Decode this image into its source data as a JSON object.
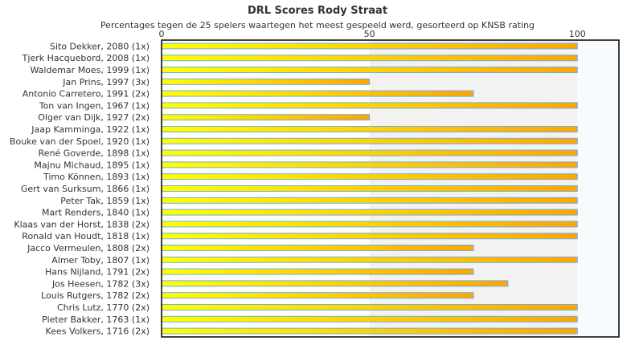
{
  "chart_data": {
    "type": "bar",
    "orientation": "horizontal",
    "title": "DRL Scores Rody Straat",
    "subtitle": "Percentages tegen de 25 spelers waartegen het meest gespeeld werd, gesorteerd op KNSB rating",
    "xlim": [
      0,
      110
    ],
    "xticks": [
      "0",
      "50",
      "100"
    ],
    "categories": [
      "Sito Dekker, 2080 (1x)",
      "Tjerk Hacquebord, 2008 (1x)",
      "Waldemar Moes, 1999 (1x)",
      "Jan Prins, 1997 (3x)",
      "Antonio Carretero, 1991 (2x)",
      "Ton van Ingen, 1967 (1x)",
      "Olger van Dijk, 1927 (2x)",
      "Jaap Kamminga, 1922 (1x)",
      "Bouke van der Spoel, 1920 (1x)",
      "René Goverde, 1898 (1x)",
      "Majnu Michaud, 1895 (1x)",
      "Timo Können, 1893 (1x)",
      "Gert van Surksum, 1866 (1x)",
      "Peter Tak, 1859 (1x)",
      "Mart Renders, 1840 (1x)",
      "Klaas van der Horst, 1838 (2x)",
      "Ronald van Houdt, 1818 (1x)",
      "Jacco Vermeulen, 1808 (2x)",
      "Almer Toby, 1807 (1x)",
      "Hans Nijland, 1791 (2x)",
      "Jos Heesen, 1782 (3x)",
      "Louis Rutgers, 1782 (2x)",
      "Chris Lutz, 1770 (2x)",
      "Pieter Bakker, 1763 (1x)",
      "Kees Volkers, 1716 (2x)"
    ],
    "values": [
      100,
      100,
      100,
      50,
      75,
      100,
      50,
      100,
      100,
      100,
      100,
      100,
      100,
      100,
      100,
      100,
      100,
      75,
      100,
      75,
      83.3,
      75,
      100,
      100,
      100
    ],
    "colors": {
      "bar_start": "#ffff00",
      "bar_end": "#ffa500",
      "bar_border": "#6aaeea",
      "band_mid": "#f2f2f2",
      "band_high": "#f7fbfe"
    }
  }
}
